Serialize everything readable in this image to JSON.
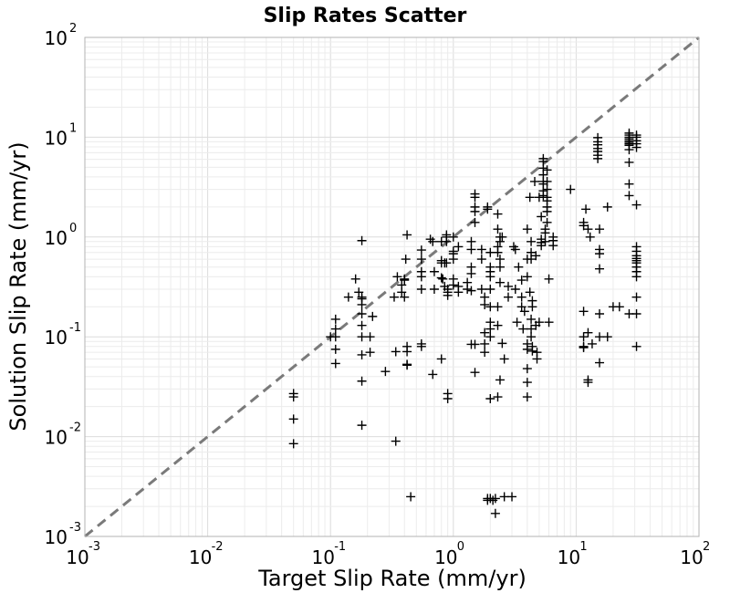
{
  "chart_data": {
    "type": "scatter",
    "title": "Slip Rates Scatter",
    "xlabel": "Target Slip Rate (mm/yr)",
    "ylabel": "Solution Slip Rate (mm/yr)",
    "xscale": "log",
    "yscale": "log",
    "xlim": [
      0.001,
      100
    ],
    "ylim": [
      0.001,
      100
    ],
    "grid": true,
    "legend": "none",
    "colors": {
      "points": "#000000",
      "diagonal": "#7a7a7a",
      "grid": "#e6e6e6",
      "frame": "#b3b3b3"
    },
    "tick_labels": {
      "x": [
        {
          "base": "10",
          "exp": "-3"
        },
        {
          "base": "10",
          "exp": "-2"
        },
        {
          "base": "10",
          "exp": "-1"
        },
        {
          "base": "10",
          "exp": "0"
        },
        {
          "base": "10",
          "exp": "1"
        },
        {
          "base": "10",
          "exp": "2"
        }
      ],
      "y": [
        {
          "base": "10",
          "exp": "-3"
        },
        {
          "base": "10",
          "exp": "-2"
        },
        {
          "base": "10",
          "exp": "-1"
        },
        {
          "base": "10",
          "exp": "0"
        },
        {
          "base": "10",
          "exp": "1"
        },
        {
          "base": "10",
          "exp": "2"
        }
      ]
    },
    "reference_line": {
      "style": "dashed",
      "from": [
        0.001,
        0.001
      ],
      "to": [
        100,
        100
      ]
    },
    "series": [
      {
        "marker": "plus",
        "points": [
          [
            0.05,
            0.027
          ],
          [
            0.05,
            0.025
          ],
          [
            0.05,
            0.015
          ],
          [
            0.05,
            0.0085
          ],
          [
            0.1,
            0.1
          ],
          [
            0.11,
            0.15
          ],
          [
            0.11,
            0.12
          ],
          [
            0.11,
            0.1
          ],
          [
            0.11,
            0.075
          ],
          [
            0.11,
            0.054
          ],
          [
            0.14,
            0.25
          ],
          [
            0.16,
            0.38
          ],
          [
            0.17,
            0.28
          ],
          [
            0.18,
            0.25
          ],
          [
            0.18,
            0.92
          ],
          [
            0.18,
            0.24
          ],
          [
            0.18,
            0.21
          ],
          [
            0.18,
            0.17
          ],
          [
            0.18,
            0.13
          ],
          [
            0.18,
            0.1
          ],
          [
            0.18,
            0.066
          ],
          [
            0.18,
            0.036
          ],
          [
            0.18,
            0.013
          ],
          [
            0.21,
            0.1
          ],
          [
            0.21,
            0.07
          ],
          [
            0.22,
            0.16
          ],
          [
            0.28,
            0.045
          ],
          [
            0.33,
            0.25
          ],
          [
            0.34,
            0.071
          ],
          [
            0.34,
            0.009
          ],
          [
            0.35,
            0.4
          ],
          [
            0.38,
            0.33
          ],
          [
            0.38,
            0.28
          ],
          [
            0.4,
            0.25
          ],
          [
            0.4,
            0.37
          ],
          [
            0.4,
            0.38
          ],
          [
            0.41,
            0.6
          ],
          [
            0.42,
            1.05
          ],
          [
            0.42,
            0.08
          ],
          [
            0.42,
            0.071
          ],
          [
            0.42,
            0.053
          ],
          [
            0.42,
            0.052
          ],
          [
            0.45,
            0.0025
          ],
          [
            0.55,
            0.74
          ],
          [
            0.55,
            0.6
          ],
          [
            0.55,
            0.45
          ],
          [
            0.55,
            0.4
          ],
          [
            0.55,
            0.3
          ],
          [
            0.55,
            0.085
          ],
          [
            0.55,
            0.08
          ],
          [
            0.65,
            0.95
          ],
          [
            0.68,
            0.9
          ],
          [
            0.68,
            0.042
          ],
          [
            0.7,
            0.45
          ],
          [
            0.7,
            0.3
          ],
          [
            0.8,
            0.9
          ],
          [
            0.8,
            0.58
          ],
          [
            0.8,
            0.55
          ],
          [
            0.8,
            0.39
          ],
          [
            0.8,
            0.06
          ],
          [
            0.82,
            0.38
          ],
          [
            0.85,
            0.55
          ],
          [
            0.85,
            0.32
          ],
          [
            0.88,
            1.05
          ],
          [
            0.88,
            1.0
          ],
          [
            0.88,
            0.9
          ],
          [
            0.88,
            0.55
          ],
          [
            0.9,
            0.3
          ],
          [
            0.9,
            0.28
          ],
          [
            0.9,
            0.26
          ],
          [
            0.9,
            0.027
          ],
          [
            0.9,
            0.024
          ],
          [
            1.0,
            1.0
          ],
          [
            1.0,
            0.72
          ],
          [
            1.0,
            0.68
          ],
          [
            1.0,
            0.6
          ],
          [
            1.0,
            0.38
          ],
          [
            1.0,
            0.33
          ],
          [
            1.1,
            0.8
          ],
          [
            1.1,
            0.32
          ],
          [
            1.1,
            0.28
          ],
          [
            1.3,
            0.35
          ],
          [
            1.3,
            0.3
          ],
          [
            1.4,
            0.9
          ],
          [
            1.4,
            0.75
          ],
          [
            1.4,
            0.5
          ],
          [
            1.4,
            0.43
          ],
          [
            1.4,
            0.29
          ],
          [
            1.4,
            0.084
          ],
          [
            1.5,
            2.7
          ],
          [
            1.5,
            2.5
          ],
          [
            1.5,
            2.0
          ],
          [
            1.5,
            1.8
          ],
          [
            1.5,
            1.4
          ],
          [
            1.5,
            0.084
          ],
          [
            1.5,
            0.044
          ],
          [
            1.7,
            0.75
          ],
          [
            1.7,
            0.6
          ],
          [
            1.7,
            0.3
          ],
          [
            1.8,
            0.25
          ],
          [
            1.8,
            0.21
          ],
          [
            1.8,
            0.11
          ],
          [
            1.8,
            0.085
          ],
          [
            1.8,
            0.07
          ],
          [
            1.9,
            2.0
          ],
          [
            1.9,
            1.9
          ],
          [
            1.9,
            0.0024
          ],
          [
            1.9,
            0.0023
          ],
          [
            2.0,
            0.7
          ],
          [
            2.0,
            0.5
          ],
          [
            2.0,
            0.45
          ],
          [
            2.0,
            0.4
          ],
          [
            2.0,
            0.3
          ],
          [
            2.0,
            0.2
          ],
          [
            2.0,
            0.14
          ],
          [
            2.0,
            0.12
          ],
          [
            2.0,
            0.1
          ],
          [
            2.0,
            0.024
          ],
          [
            2.0,
            0.0024
          ],
          [
            2.1,
            0.0023
          ],
          [
            2.2,
            0.0017
          ],
          [
            2.2,
            0.0024
          ],
          [
            2.3,
            1.7
          ],
          [
            2.3,
            1.2
          ],
          [
            2.3,
            0.8
          ],
          [
            2.3,
            0.7
          ],
          [
            2.3,
            0.2
          ],
          [
            2.3,
            0.13
          ],
          [
            2.3,
            0.025
          ],
          [
            2.4,
            1.0
          ],
          [
            2.4,
            0.9
          ],
          [
            2.4,
            0.6
          ],
          [
            2.4,
            0.5
          ],
          [
            2.4,
            0.35
          ],
          [
            2.4,
            0.037
          ],
          [
            2.5,
            1.0
          ],
          [
            2.5,
            0.086
          ],
          [
            2.6,
            0.0025
          ],
          [
            2.6,
            0.06
          ],
          [
            2.8,
            0.32
          ],
          [
            2.8,
            0.25
          ],
          [
            3.0,
            0.0025
          ],
          [
            3.1,
            0.8
          ],
          [
            3.2,
            0.75
          ],
          [
            3.2,
            0.3
          ],
          [
            3.3,
            0.14
          ],
          [
            3.4,
            0.5
          ],
          [
            3.6,
            0.37
          ],
          [
            3.6,
            0.25
          ],
          [
            3.6,
            0.2
          ],
          [
            3.7,
            0.12
          ],
          [
            3.8,
            0.18
          ],
          [
            4.0,
            1.2
          ],
          [
            4.0,
            0.6
          ],
          [
            4.0,
            0.4
          ],
          [
            4.0,
            0.085
          ],
          [
            4.0,
            0.075
          ],
          [
            4.0,
            0.048
          ],
          [
            4.0,
            0.035
          ],
          [
            4.0,
            0.025
          ],
          [
            4.2,
            2.5
          ],
          [
            4.2,
            0.28
          ],
          [
            4.3,
            0.9
          ],
          [
            4.3,
            0.7
          ],
          [
            4.3,
            0.6
          ],
          [
            4.3,
            0.15
          ],
          [
            4.3,
            0.12
          ],
          [
            4.3,
            0.1
          ],
          [
            4.4,
            0.23
          ],
          [
            4.4,
            0.2
          ],
          [
            4.4,
            0.08
          ],
          [
            4.4,
            0.072
          ],
          [
            4.6,
            3.6
          ],
          [
            4.7,
            0.65
          ],
          [
            4.7,
            0.13
          ],
          [
            4.8,
            0.07
          ],
          [
            4.8,
            0.06
          ],
          [
            5.0,
            2.5
          ],
          [
            5.0,
            0.14
          ],
          [
            5.2,
            1.6
          ],
          [
            5.2,
            0.95
          ],
          [
            5.2,
            0.88
          ],
          [
            5.2,
            0.82
          ],
          [
            5.4,
            6.1
          ],
          [
            5.4,
            5.7
          ],
          [
            5.4,
            4.9
          ],
          [
            5.4,
            4.2
          ],
          [
            5.4,
            3.6
          ],
          [
            5.4,
            3.4
          ],
          [
            5.4,
            2.9
          ],
          [
            5.4,
            2.6
          ],
          [
            5.6,
            1.2
          ],
          [
            5.6,
            1.1
          ],
          [
            5.6,
            0.9
          ],
          [
            5.8,
            4.7
          ],
          [
            5.8,
            3.6
          ],
          [
            5.8,
            3.0
          ],
          [
            5.8,
            2.5
          ],
          [
            5.8,
            2.3
          ],
          [
            5.8,
            2.0
          ],
          [
            5.8,
            1.8
          ],
          [
            5.8,
            1.4
          ],
          [
            6.0,
            0.38
          ],
          [
            6.0,
            0.14
          ],
          [
            6.5,
            1.0
          ],
          [
            6.5,
            0.92
          ],
          [
            6.5,
            0.82
          ],
          [
            9.0,
            3.0
          ],
          [
            11.5,
            1.4
          ],
          [
            11.5,
            1.3
          ],
          [
            11.5,
            0.18
          ],
          [
            11.5,
            0.1
          ],
          [
            11.5,
            0.08
          ],
          [
            11.5,
            0.078
          ],
          [
            12.0,
            1.9
          ],
          [
            12.5,
            1.2
          ],
          [
            12.5,
            0.11
          ],
          [
            12.5,
            0.037
          ],
          [
            12.5,
            0.035
          ],
          [
            13.0,
            1.0
          ],
          [
            13.5,
            0.085
          ],
          [
            15.0,
            9.9
          ],
          [
            15.0,
            9.0
          ],
          [
            15.0,
            8.4
          ],
          [
            15.0,
            7.7
          ],
          [
            15.0,
            7.2
          ],
          [
            15.0,
            6.6
          ],
          [
            15.0,
            6.1
          ],
          [
            15.5,
            1.2
          ],
          [
            15.5,
            0.75
          ],
          [
            15.5,
            0.68
          ],
          [
            15.5,
            0.48
          ],
          [
            15.5,
            0.17
          ],
          [
            15.5,
            0.055
          ],
          [
            15.5,
            0.1
          ],
          [
            18.0,
            2.0
          ],
          [
            18.0,
            0.1
          ],
          [
            20.0,
            0.2
          ],
          [
            22.5,
            0.2
          ],
          [
            27.0,
            11.0
          ],
          [
            27.0,
            10.5
          ],
          [
            27.0,
            10.0
          ],
          [
            27.0,
            9.6
          ],
          [
            27.0,
            9.2
          ],
          [
            27.0,
            8.9
          ],
          [
            27.0,
            8.6
          ],
          [
            27.0,
            8.3
          ],
          [
            27.0,
            7.5
          ],
          [
            27.0,
            5.6
          ],
          [
            27.0,
            3.4
          ],
          [
            27.0,
            2.6
          ],
          [
            27.0,
            0.17
          ],
          [
            31.0,
            10.5
          ],
          [
            31.0,
            10.0
          ],
          [
            31.0,
            9.2
          ],
          [
            31.0,
            8.6
          ],
          [
            31.0,
            7.9
          ],
          [
            31.0,
            2.1
          ],
          [
            31.0,
            0.8
          ],
          [
            31.0,
            0.72
          ],
          [
            31.0,
            0.65
          ],
          [
            31.0,
            0.61
          ],
          [
            31.0,
            0.58
          ],
          [
            31.0,
            0.55
          ],
          [
            31.0,
            0.5
          ],
          [
            31.0,
            0.45
          ],
          [
            31.0,
            0.4
          ],
          [
            31.0,
            0.25
          ],
          [
            31.0,
            0.17
          ],
          [
            31.0,
            0.08
          ]
        ]
      }
    ]
  }
}
